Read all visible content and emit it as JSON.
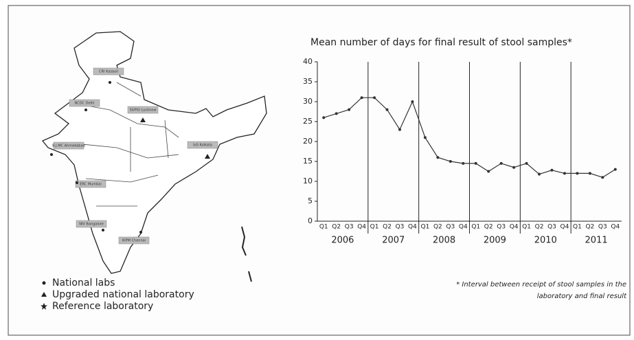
{
  "chart_data": {
    "type": "line",
    "title": "Mean number of days for final result of stool samples*",
    "categories": [
      "Q1",
      "Q2",
      "Q3",
      "Q4",
      "Q1",
      "Q2",
      "Q3",
      "Q4",
      "Q1",
      "Q2",
      "Q3",
      "Q4",
      "Q1",
      "Q2",
      "Q3",
      "Q4",
      "Q1",
      "Q2",
      "Q3",
      "Q4",
      "Q1",
      "Q2",
      "Q3",
      "Q4"
    ],
    "years": [
      "2006",
      "2007",
      "2008",
      "2009",
      "2010",
      "2011"
    ],
    "values": [
      26,
      27,
      28,
      31,
      31,
      28,
      23,
      30,
      21,
      16,
      15,
      14.5,
      14.5,
      12.5,
      14.5,
      13.5,
      14.5,
      11.8,
      12.8,
      12,
      12,
      12,
      11,
      13
    ],
    "color": "#333333",
    "ylim": [
      0,
      40
    ],
    "yticks": [
      0,
      5,
      10,
      15,
      20,
      25,
      30,
      35,
      40
    ],
    "footnote": [
      "* Interval between receipt of stool samples in the",
      "laboratory and final result"
    ]
  },
  "map": {
    "labels": [
      "CRI Kasauli",
      "NCDC Delhi",
      "SGPGI Lucknow",
      "B.J.MC Ahmedabad",
      "IoS Kolkata",
      "ERC Mumbai",
      "NIV Bangalore",
      "KIPM Chennai"
    ],
    "legend": [
      "National labs",
      "Upgraded national laboratory",
      "Reference laboratory"
    ]
  }
}
